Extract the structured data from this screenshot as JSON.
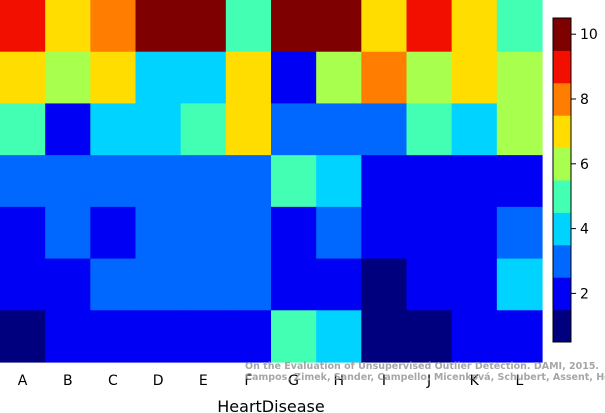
{
  "chart_data": {
    "type": "heatmap",
    "categories": [
      "A",
      "B",
      "C",
      "D",
      "E",
      "F",
      "G",
      "H",
      "I",
      "J",
      "K",
      "L"
    ],
    "xlabel": "HeartDisease",
    "ylabel": "",
    "title": "",
    "values": [
      [
        9,
        7,
        8,
        10,
        10,
        5,
        10,
        10,
        7,
        9,
        7,
        5
      ],
      [
        7,
        6,
        7,
        4,
        4,
        7,
        2,
        6,
        8,
        6,
        7,
        6
      ],
      [
        5,
        2,
        4,
        4,
        5,
        7,
        3,
        3,
        3,
        5,
        4,
        6
      ],
      [
        3,
        3,
        3,
        3,
        3,
        3,
        5,
        4,
        2,
        2,
        2,
        2
      ],
      [
        2,
        3,
        2,
        3,
        3,
        3,
        2,
        3,
        2,
        2,
        2,
        3
      ],
      [
        2,
        2,
        3,
        3,
        3,
        3,
        2,
        2,
        1,
        2,
        2,
        4
      ],
      [
        1,
        2,
        2,
        2,
        2,
        2,
        5,
        4,
        1,
        1,
        2,
        2
      ]
    ],
    "colorbar": {
      "range": [
        0.5,
        10.5
      ],
      "ticks": [
        2,
        4,
        6,
        8,
        10
      ],
      "colors": [
        "#00007f",
        "#0000f4",
        "#0068ff",
        "#00d3ff",
        "#42ffb4",
        "#a8ff4d",
        "#ffdd00",
        "#ff7d00",
        "#f30f00",
        "#7f0000"
      ]
    },
    "grid": false
  },
  "watermark": {
    "line1": "On the Evaluation of Unsupervised Outlier Detection. DAMI, 2015.",
    "line2": "Campos, Zimek, Sander, Campello, Micenková, Schubert, Assent, Houle"
  }
}
